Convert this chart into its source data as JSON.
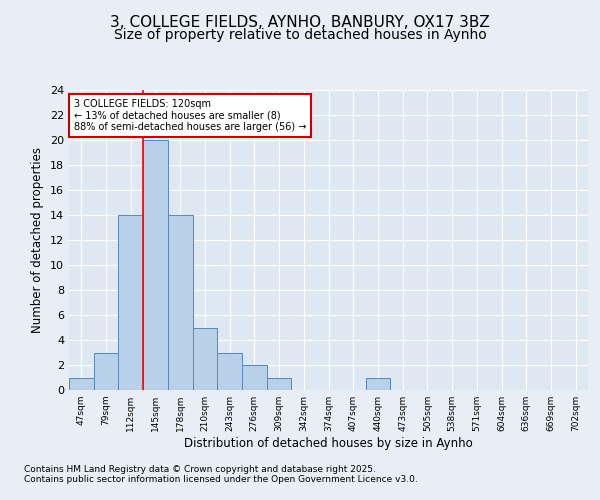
{
  "title1": "3, COLLEGE FIELDS, AYNHO, BANBURY, OX17 3BZ",
  "title2": "Size of property relative to detached houses in Aynho",
  "xlabel": "Distribution of detached houses by size in Aynho",
  "ylabel": "Number of detached properties",
  "categories": [
    "47sqm",
    "79sqm",
    "112sqm",
    "145sqm",
    "178sqm",
    "210sqm",
    "243sqm",
    "276sqm",
    "309sqm",
    "342sqm",
    "374sqm",
    "407sqm",
    "440sqm",
    "473sqm",
    "505sqm",
    "538sqm",
    "571sqm",
    "604sqm",
    "636sqm",
    "669sqm",
    "702sqm"
  ],
  "values": [
    1,
    3,
    14,
    20,
    14,
    5,
    3,
    2,
    1,
    0,
    0,
    0,
    1,
    0,
    0,
    0,
    0,
    0,
    0,
    0,
    0
  ],
  "bar_color": "#b8d0e8",
  "bar_edge_color": "#5588bb",
  "red_line_x": 2.5,
  "ylim": [
    0,
    24
  ],
  "yticks": [
    0,
    2,
    4,
    6,
    8,
    10,
    12,
    14,
    16,
    18,
    20,
    22,
    24
  ],
  "annotation_title": "3 COLLEGE FIELDS: 120sqm",
  "annotation_line1": "← 13% of detached houses are smaller (8)",
  "annotation_line2": "88% of semi-detached houses are larger (56) →",
  "annotation_box_color": "#ffffff",
  "annotation_box_edge": "#cc0000",
  "footnote1": "Contains HM Land Registry data © Crown copyright and database right 2025.",
  "footnote2": "Contains public sector information licensed under the Open Government Licence v3.0.",
  "bg_color": "#e8eef5",
  "plot_bg_color": "#dde8f2",
  "grid_color": "#ffffff",
  "title1_fontsize": 11,
  "title2_fontsize": 10
}
